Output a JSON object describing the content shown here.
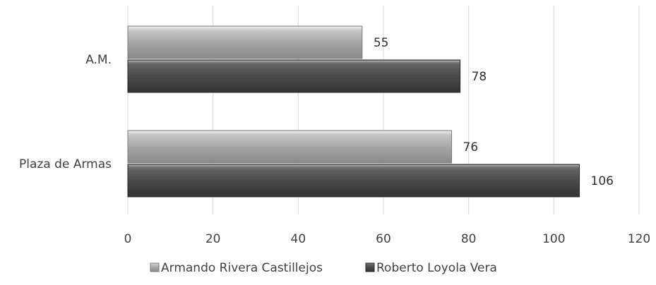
{
  "chart_data": {
    "type": "bar",
    "orientation": "horizontal",
    "categories": [
      "A.M.",
      "Plaza de Armas"
    ],
    "series": [
      {
        "name": "Armando Rivera Castillejos",
        "values": [
          55,
          76
        ],
        "color": "#a6a6a6"
      },
      {
        "name": "Roberto Loyola Vera",
        "values": [
          78,
          106
        ],
        "color": "#4d4d4d"
      }
    ],
    "xlim": [
      0,
      120
    ],
    "xticks": [
      0,
      20,
      40,
      60,
      80,
      100,
      120
    ],
    "grid": "vertical",
    "legend": "bottom",
    "data_labels": true
  }
}
